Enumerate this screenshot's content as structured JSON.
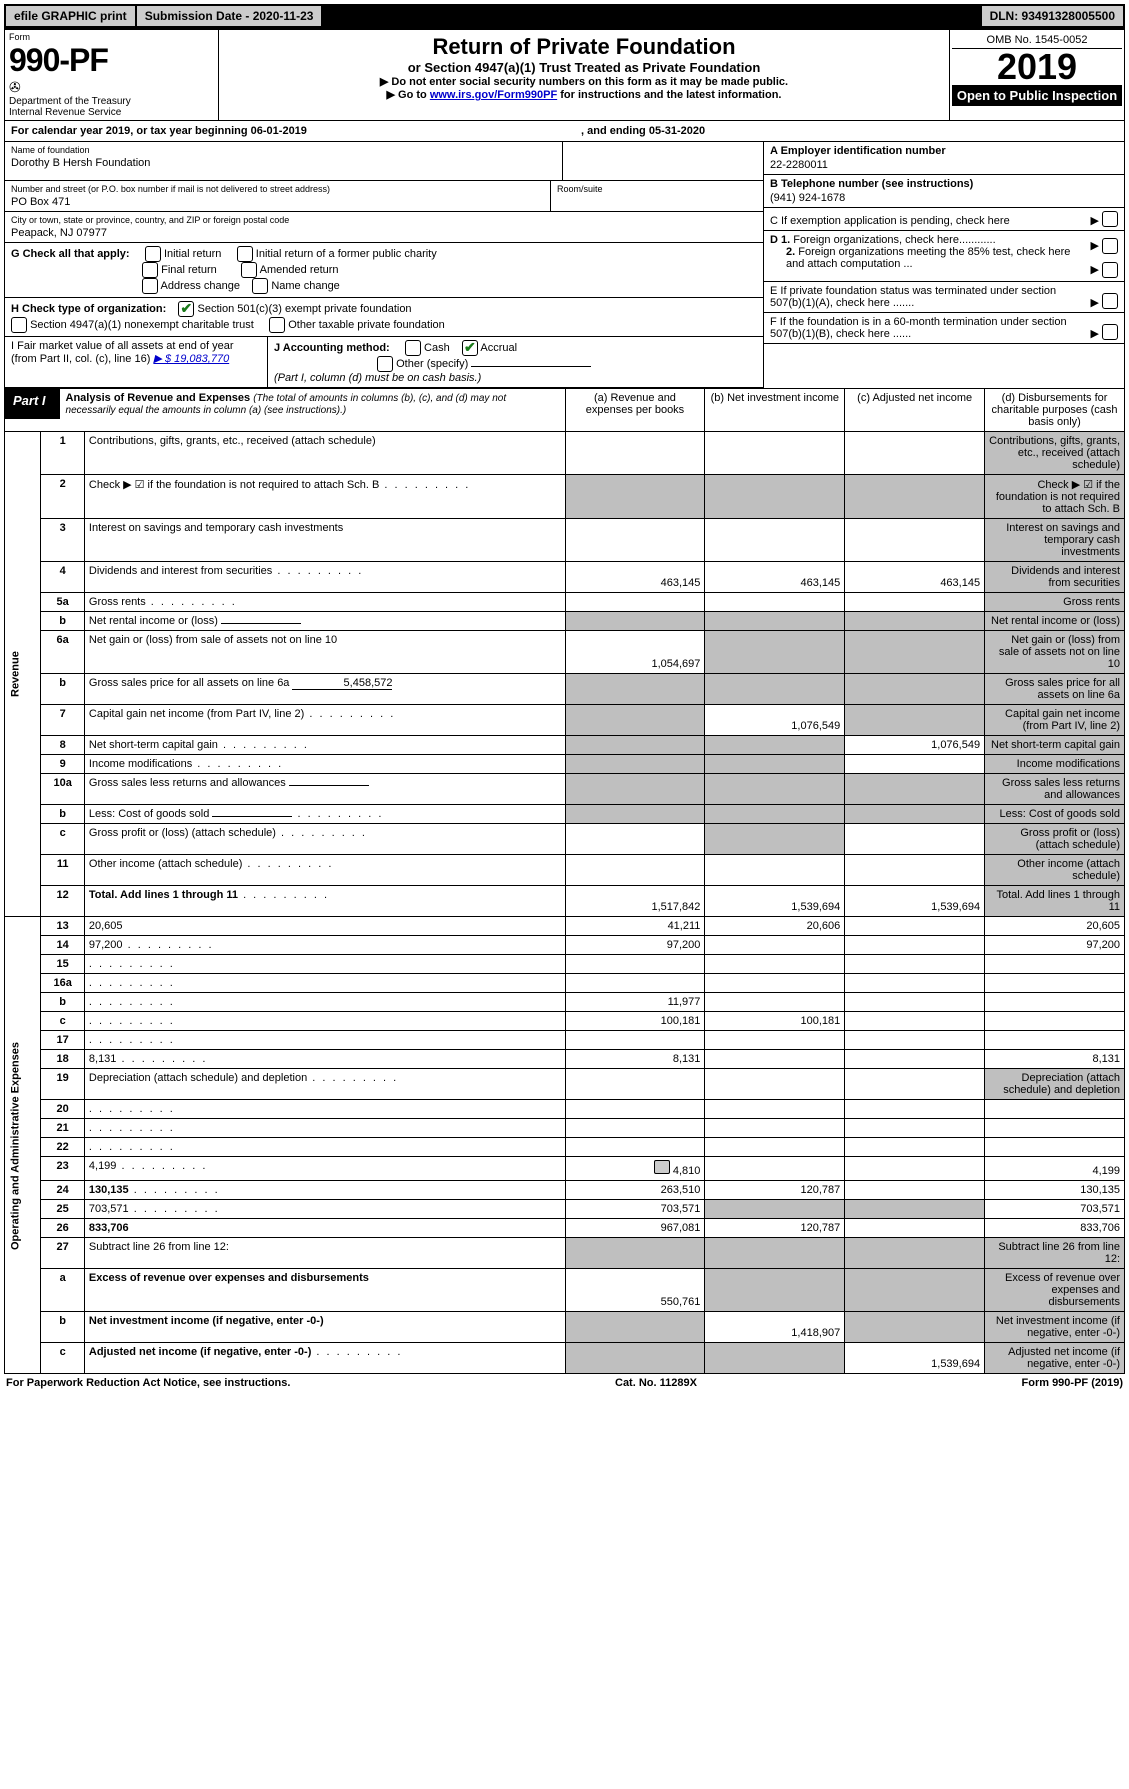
{
  "topbar": {
    "efile": "efile GRAPHIC print",
    "submission": "Submission Date - 2020-11-23",
    "dln": "DLN: 93491328005500"
  },
  "header": {
    "form_label": "Form",
    "form_number": "990-PF",
    "dept": "Department of the Treasury\nInternal Revenue Service",
    "title": "Return of Private Foundation",
    "subtitle": "or Section 4947(a)(1) Trust Treated as Private Foundation",
    "note1": "▶ Do not enter social security numbers on this form as it may be made public.",
    "note2_pre": "▶ Go to ",
    "note2_link": "www.irs.gov/Form990PF",
    "note2_post": " for instructions and the latest information.",
    "omb": "OMB No. 1545-0052",
    "year": "2019",
    "open": "Open to Public Inspection"
  },
  "calendar": {
    "text1": "For calendar year 2019, or tax year beginning 06-01-2019",
    "text2": ", and ending 05-31-2020"
  },
  "entity": {
    "name_label": "Name of foundation",
    "name": "Dorothy B Hersh Foundation",
    "addr_label": "Number and street (or P.O. box number if mail is not delivered to street address)",
    "room_label": "Room/suite",
    "addr": "PO Box 471",
    "city_label": "City or town, state or province, country, and ZIP or foreign postal code",
    "city": "Peapack, NJ  07977",
    "ein_label": "A Employer identification number",
    "ein": "22-2280011",
    "phone_label": "B Telephone number (see instructions)",
    "phone": "(941) 924-1678",
    "c_label": "C If exemption application is pending, check here",
    "d1": "D 1. Foreign organizations, check here............",
    "d2": "2. Foreign organizations meeting the 85% test, check here and attach computation ...",
    "e": "E   If private foundation status was terminated under section 507(b)(1)(A), check here .......",
    "f": "F   If the foundation is in a 60-month termination under section 507(b)(1)(B), check here ......"
  },
  "g": {
    "label": "G Check all that apply:",
    "opts": [
      "Initial return",
      "Initial return of a former public charity",
      "Final return",
      "Amended return",
      "Address change",
      "Name change"
    ]
  },
  "h": {
    "label": "H Check type of organization:",
    "opt1": "Section 501(c)(3) exempt private foundation",
    "opt2": "Section 4947(a)(1) nonexempt charitable trust",
    "opt3": "Other taxable private foundation"
  },
  "i": {
    "label": "I Fair market value of all assets at end of year (from Part II, col. (c), line 16)",
    "value": "▶ $  19,083,770"
  },
  "j": {
    "label": "J Accounting method:",
    "cash": "Cash",
    "accrual": "Accrual",
    "other": "Other (specify)",
    "note": "(Part I, column (d) must be on cash basis.)"
  },
  "part1": {
    "tag": "Part I",
    "title": "Analysis of Revenue and Expenses",
    "title_note": "(The total of amounts in columns (b), (c), and (d) may not necessarily equal the amounts in column (a) (see instructions).)",
    "col_a": "(a)   Revenue and expenses per books",
    "col_b": "(b)  Net investment income",
    "col_c": "(c)  Adjusted net income",
    "col_d": "(d)  Disbursements for charitable purposes (cash basis only)"
  },
  "revenue": {
    "side": "Revenue",
    "rows": [
      {
        "n": "1",
        "d": "Contributions, gifts, grants, etc., received (attach schedule)",
        "a": "",
        "b": "",
        "c": "",
        "d_grey": true
      },
      {
        "n": "2",
        "d": "Check ▶ ☑ if the foundation is not required to attach Sch. B",
        "dots": true,
        "all_grey": true
      },
      {
        "n": "3",
        "d": "Interest on savings and temporary cash investments",
        "a": "",
        "b": "",
        "c": "",
        "d_grey": true
      },
      {
        "n": "4",
        "d": "Dividends and interest from securities",
        "dots": true,
        "a": "463,145",
        "b": "463,145",
        "c": "463,145",
        "d_grey": true
      },
      {
        "n": "5a",
        "d": "Gross rents",
        "dots": true,
        "a": "",
        "b": "",
        "c": "",
        "d_grey": true
      },
      {
        "n": "b",
        "d": "Net rental income or (loss)",
        "inline": true,
        "all_grey": true
      },
      {
        "n": "6a",
        "d": "Net gain or (loss) from sale of assets not on line 10",
        "a": "1,054,697",
        "b_grey": true,
        "c_grey": true,
        "d_grey": true
      },
      {
        "n": "b",
        "d": "Gross sales price for all assets on line 6a",
        "inline_val": "5,458,572",
        "all_grey": true
      },
      {
        "n": "7",
        "d": "Capital gain net income (from Part IV, line 2)",
        "dots": true,
        "a_grey": true,
        "b": "1,076,549",
        "c_grey": true,
        "d_grey": true
      },
      {
        "n": "8",
        "d": "Net short-term capital gain",
        "dots": true,
        "a_grey": true,
        "b_grey": true,
        "c": "1,076,549",
        "d_grey": true
      },
      {
        "n": "9",
        "d": "Income modifications",
        "dots": true,
        "a_grey": true,
        "b_grey": true,
        "c": "",
        "d_grey": true
      },
      {
        "n": "10a",
        "d": "Gross sales less returns and allowances",
        "inline": true,
        "all_grey": true
      },
      {
        "n": "b",
        "d": "Less: Cost of goods sold",
        "dots": true,
        "inline": true,
        "all_grey": true
      },
      {
        "n": "c",
        "d": "Gross profit or (loss) (attach schedule)",
        "dots": true,
        "a": "",
        "b_grey": true,
        "c": "",
        "d_grey": true
      },
      {
        "n": "11",
        "d": "Other income (attach schedule)",
        "dots": true,
        "a": "",
        "b": "",
        "c": "",
        "d_grey": true
      },
      {
        "n": "12",
        "d": "Total. Add lines 1 through 11",
        "bold": true,
        "dots": true,
        "a": "1,517,842",
        "b": "1,539,694",
        "c": "1,539,694",
        "d_grey": true
      }
    ]
  },
  "expenses": {
    "side": "Operating and Administrative Expenses",
    "rows": [
      {
        "n": "13",
        "d": "20,605",
        "a": "41,211",
        "b": "20,606",
        "c": ""
      },
      {
        "n": "14",
        "d": "97,200",
        "dots": true,
        "a": "97,200",
        "b": "",
        "c": ""
      },
      {
        "n": "15",
        "d": "",
        "dots": true,
        "a": "",
        "b": "",
        "c": ""
      },
      {
        "n": "16a",
        "d": "",
        "dots": true,
        "a": "",
        "b": "",
        "c": ""
      },
      {
        "n": "b",
        "d": "",
        "dots": true,
        "a": "11,977",
        "b": "",
        "c": ""
      },
      {
        "n": "c",
        "d": "",
        "dots": true,
        "a": "100,181",
        "b": "100,181",
        "c": ""
      },
      {
        "n": "17",
        "d": "",
        "dots": true,
        "a": "",
        "b": "",
        "c": ""
      },
      {
        "n": "18",
        "d": "8,131",
        "dots": true,
        "a": "8,131",
        "b": "",
        "c": ""
      },
      {
        "n": "19",
        "d": "Depreciation (attach schedule) and depletion",
        "dots": true,
        "a": "",
        "b": "",
        "c": "",
        "d_grey": true
      },
      {
        "n": "20",
        "d": "",
        "dots": true,
        "a": "",
        "b": "",
        "c": ""
      },
      {
        "n": "21",
        "d": "",
        "dots": true,
        "a": "",
        "b": "",
        "c": ""
      },
      {
        "n": "22",
        "d": "",
        "dots": true,
        "a": "",
        "b": "",
        "c": ""
      },
      {
        "n": "23",
        "d": "4,199",
        "dots": true,
        "attach": true,
        "a": "4,810",
        "b": "",
        "c": ""
      },
      {
        "n": "24",
        "d": "130,135",
        "bold": true,
        "dots": true,
        "a": "263,510",
        "b": "120,787",
        "c": ""
      },
      {
        "n": "25",
        "d": "703,571",
        "dots": true,
        "a": "703,571",
        "b_grey": true,
        "c_grey": true
      },
      {
        "n": "26",
        "d": "833,706",
        "bold": true,
        "a": "967,081",
        "b": "120,787",
        "c": ""
      },
      {
        "n": "27",
        "d": "Subtract line 26 from line 12:",
        "a_grey": true,
        "b_grey": true,
        "c_grey": true,
        "d_grey": true
      },
      {
        "n": "a",
        "d": "Excess of revenue over expenses and disbursements",
        "bold": true,
        "a": "550,761",
        "b_grey": true,
        "c_grey": true,
        "d_grey": true
      },
      {
        "n": "b",
        "d": "Net investment income (if negative, enter -0-)",
        "bold": true,
        "a_grey": true,
        "b": "1,418,907",
        "c_grey": true,
        "d_grey": true
      },
      {
        "n": "c",
        "d": "Adjusted net income (if negative, enter -0-)",
        "bold": true,
        "dots": true,
        "a_grey": true,
        "b_grey": true,
        "c": "1,539,694",
        "d_grey": true
      }
    ]
  },
  "footer": {
    "left": "For Paperwork Reduction Act Notice, see instructions.",
    "mid": "Cat. No. 11289X",
    "right": "Form 990-PF (2019)"
  }
}
